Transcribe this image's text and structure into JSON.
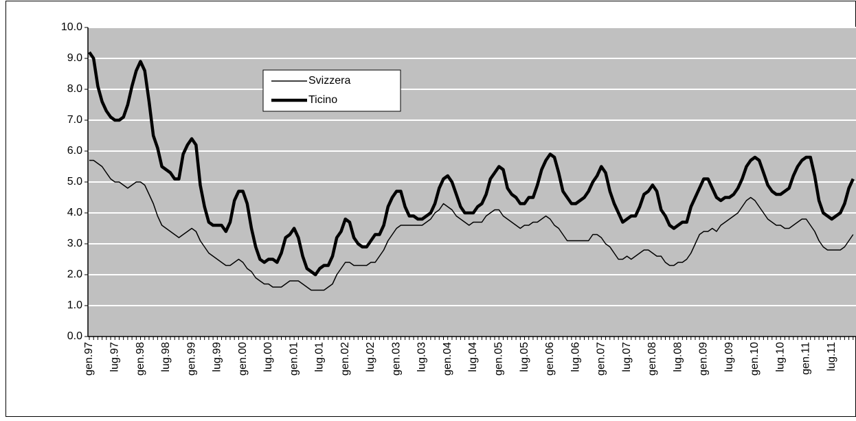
{
  "chart_data": {
    "type": "line",
    "categories": [
      "gen.97",
      null,
      null,
      null,
      null,
      null,
      "lug.97",
      null,
      null,
      null,
      null,
      null,
      "gen.98",
      null,
      null,
      null,
      null,
      null,
      "lug.98",
      null,
      null,
      null,
      null,
      null,
      "gen.99",
      null,
      null,
      null,
      null,
      null,
      "lug.99",
      null,
      null,
      null,
      null,
      null,
      "gen.00",
      null,
      null,
      null,
      null,
      null,
      "lug.00",
      null,
      null,
      null,
      null,
      null,
      "gen.01",
      null,
      null,
      null,
      null,
      null,
      "lug.01",
      null,
      null,
      null,
      null,
      null,
      "gen.02",
      null,
      null,
      null,
      null,
      null,
      "lug.02",
      null,
      null,
      null,
      null,
      null,
      "gen.03",
      null,
      null,
      null,
      null,
      null,
      "lug.03",
      null,
      null,
      null,
      null,
      null,
      "gen.04",
      null,
      null,
      null,
      null,
      null,
      "lug.04",
      null,
      null,
      null,
      null,
      null,
      "gen.05",
      null,
      null,
      null,
      null,
      null,
      "lug.05",
      null,
      null,
      null,
      null,
      null,
      "gen.06",
      null,
      null,
      null,
      null,
      null,
      "lug.06",
      null,
      null,
      null,
      null,
      null,
      "gen.07",
      null,
      null,
      null,
      null,
      null,
      "lug.07",
      null,
      null,
      null,
      null,
      null,
      "gen.08",
      null,
      null,
      null,
      null,
      null,
      "lug.08",
      null,
      null,
      null,
      null,
      null,
      "gen.09",
      null,
      null,
      null,
      null,
      null,
      "lug.09",
      null,
      null,
      null,
      null,
      null,
      "gen.10",
      null,
      null,
      null,
      null,
      null,
      "lug.10",
      null,
      null,
      null,
      null,
      null,
      "gen.11",
      null,
      null,
      null,
      null,
      null,
      "lug.11",
      null,
      null,
      null,
      null,
      null
    ],
    "series": [
      {
        "name": "Svizzera",
        "color": "#000000",
        "width": 1.5,
        "values": [
          5.7,
          5.7,
          5.6,
          5.5,
          5.3,
          5.1,
          5.0,
          5.0,
          4.9,
          4.8,
          4.9,
          5.0,
          5.0,
          4.9,
          4.6,
          4.3,
          3.9,
          3.6,
          3.5,
          3.4,
          3.3,
          3.2,
          3.3,
          3.4,
          3.5,
          3.4,
          3.1,
          2.9,
          2.7,
          2.6,
          2.5,
          2.4,
          2.3,
          2.3,
          2.4,
          2.5,
          2.4,
          2.2,
          2.1,
          1.9,
          1.8,
          1.7,
          1.7,
          1.6,
          1.6,
          1.6,
          1.7,
          1.8,
          1.8,
          1.8,
          1.7,
          1.6,
          1.5,
          1.5,
          1.5,
          1.5,
          1.6,
          1.7,
          2.0,
          2.2,
          2.4,
          2.4,
          2.3,
          2.3,
          2.3,
          2.3,
          2.4,
          2.4,
          2.6,
          2.8,
          3.1,
          3.3,
          3.5,
          3.6,
          3.6,
          3.6,
          3.6,
          3.6,
          3.6,
          3.7,
          3.8,
          4.0,
          4.1,
          4.3,
          4.2,
          4.1,
          3.9,
          3.8,
          3.7,
          3.6,
          3.7,
          3.7,
          3.7,
          3.9,
          4.0,
          4.1,
          4.1,
          3.9,
          3.8,
          3.7,
          3.6,
          3.5,
          3.6,
          3.6,
          3.7,
          3.7,
          3.8,
          3.9,
          3.8,
          3.6,
          3.5,
          3.3,
          3.1,
          3.1,
          3.1,
          3.1,
          3.1,
          3.1,
          3.3,
          3.3,
          3.2,
          3.0,
          2.9,
          2.7,
          2.5,
          2.5,
          2.6,
          2.5,
          2.6,
          2.7,
          2.8,
          2.8,
          2.7,
          2.6,
          2.6,
          2.4,
          2.3,
          2.3,
          2.4,
          2.4,
          2.5,
          2.7,
          3.0,
          3.3,
          3.4,
          3.4,
          3.5,
          3.4,
          3.6,
          3.7,
          3.8,
          3.9,
          4.0,
          4.2,
          4.4,
          4.5,
          4.4,
          4.2,
          4.0,
          3.8,
          3.7,
          3.6,
          3.6,
          3.5,
          3.5,
          3.6,
          3.7,
          3.8,
          3.8,
          3.6,
          3.4,
          3.1,
          2.9,
          2.8,
          2.8,
          2.8,
          2.8,
          2.9,
          3.1,
          3.3
        ]
      },
      {
        "name": "Ticino",
        "color": "#000000",
        "width": 4.5,
        "values": [
          9.2,
          9.0,
          8.1,
          7.6,
          7.3,
          7.1,
          7.0,
          7.0,
          7.1,
          7.5,
          8.1,
          8.6,
          8.9,
          8.6,
          7.6,
          6.5,
          6.1,
          5.5,
          5.4,
          5.3,
          5.1,
          5.1,
          5.9,
          6.2,
          6.4,
          6.2,
          4.9,
          4.2,
          3.7,
          3.6,
          3.6,
          3.6,
          3.4,
          3.7,
          4.4,
          4.7,
          4.7,
          4.3,
          3.5,
          2.9,
          2.5,
          2.4,
          2.5,
          2.5,
          2.4,
          2.7,
          3.2,
          3.3,
          3.5,
          3.2,
          2.6,
          2.2,
          2.1,
          2.0,
          2.2,
          2.3,
          2.3,
          2.6,
          3.2,
          3.4,
          3.8,
          3.7,
          3.2,
          3.0,
          2.9,
          2.9,
          3.1,
          3.3,
          3.3,
          3.6,
          4.2,
          4.5,
          4.7,
          4.7,
          4.2,
          3.9,
          3.9,
          3.8,
          3.8,
          3.9,
          4.0,
          4.3,
          4.8,
          5.1,
          5.2,
          5.0,
          4.6,
          4.2,
          4.0,
          4.0,
          4.0,
          4.2,
          4.3,
          4.6,
          5.1,
          5.3,
          5.5,
          5.4,
          4.8,
          4.6,
          4.5,
          4.3,
          4.3,
          4.5,
          4.5,
          4.9,
          5.4,
          5.7,
          5.9,
          5.8,
          5.3,
          4.7,
          4.5,
          4.3,
          4.3,
          4.4,
          4.5,
          4.7,
          5.0,
          5.2,
          5.5,
          5.3,
          4.7,
          4.3,
          4.0,
          3.7,
          3.8,
          3.9,
          3.9,
          4.2,
          4.6,
          4.7,
          4.9,
          4.7,
          4.1,
          3.9,
          3.6,
          3.5,
          3.6,
          3.7,
          3.7,
          4.2,
          4.5,
          4.8,
          5.1,
          5.1,
          4.8,
          4.5,
          4.4,
          4.5,
          4.5,
          4.6,
          4.8,
          5.1,
          5.5,
          5.7,
          5.8,
          5.7,
          5.3,
          4.9,
          4.7,
          4.6,
          4.6,
          4.7,
          4.8,
          5.2,
          5.5,
          5.7,
          5.8,
          5.8,
          5.2,
          4.4,
          4.0,
          3.9,
          3.8,
          3.9,
          4.0,
          4.3,
          4.8,
          5.1
        ]
      }
    ],
    "ylim": [
      0,
      10
    ],
    "yticks": [
      {
        "value": 0,
        "label": "0.0"
      },
      {
        "value": 1,
        "label": "1.0"
      },
      {
        "value": 2,
        "label": "2.0"
      },
      {
        "value": 3,
        "label": "3.0"
      },
      {
        "value": 4,
        "label": "4.0"
      },
      {
        "value": 5,
        "label": "5.0"
      },
      {
        "value": 6,
        "label": "6.0"
      },
      {
        "value": 7,
        "label": "7.0"
      },
      {
        "value": 8,
        "label": "8.0"
      },
      {
        "value": 9,
        "label": "9.0"
      },
      {
        "value": 10,
        "label": "10.0"
      }
    ],
    "grid": true,
    "plot_background": "#c0c0c0",
    "legend": "upper-center"
  }
}
